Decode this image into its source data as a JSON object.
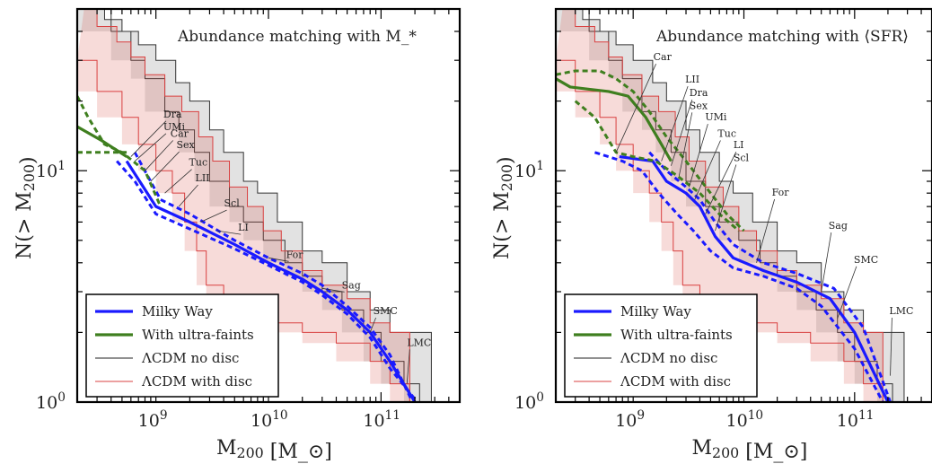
{
  "chart_data": [
    {
      "type": "line",
      "title": "Abundance matching with M_*",
      "xlabel": "M_200 [M_⊙]",
      "ylabel": "N(> M_200)",
      "xscale": "log",
      "yscale": "log",
      "xlim": [
        200000000.0,
        500000000000.0
      ],
      "ylim": [
        1,
        50
      ],
      "x_ticks": [
        {
          "v": 1000000000.0,
          "label": "10^9"
        },
        {
          "v": 10000000000.0,
          "label": "10^10"
        },
        {
          "v": 100000000000.0,
          "label": "10^11"
        }
      ],
      "y_ticks": [
        {
          "v": 1,
          "label": "10^0"
        },
        {
          "v": 10,
          "label": "10^1"
        }
      ],
      "legend_position": "lower-left",
      "legend": [
        "Milky Way",
        "With ultra-faints",
        "ΛCDM no disc",
        "ΛCDM with disc"
      ],
      "series": [
        {
          "name": "Milky Way",
          "color": "#1a1aff",
          "style": "solid",
          "x": [
            550000000.0,
            1000000000.0,
            2000000000.0,
            5000000000.0,
            10000000000.0,
            20000000000.0,
            30000000000.0,
            50000000000.0,
            80000000000.0,
            120000000000.0,
            200000000000.0
          ],
          "y": [
            11,
            7,
            6,
            4.8,
            4,
            3.4,
            3.0,
            2.5,
            2.0,
            1.5,
            1.0
          ]
        },
        {
          "name": "Milky Way",
          "color": "#1a1aff",
          "style": "dashed",
          "x": [
            450000000.0,
            650000000.0,
            1000000000.0,
            2000000000.0,
            5000000000.0,
            10000000000.0,
            20000000000.0,
            30000000000.0,
            50000000000.0,
            80000000000.0,
            120000000000.0,
            210000000000.0
          ],
          "y": [
            11,
            9,
            6.5,
            5.6,
            4.6,
            3.9,
            3.3,
            2.9,
            2.4,
            1.9,
            1.4,
            1.0
          ]
        },
        {
          "name": "Milky Way",
          "color": "#1a1aff",
          "style": "dashed",
          "x": [
            650000000.0,
            1100000000.0,
            2000000000.0,
            5000000000.0,
            10000000000.0,
            20000000000.0,
            30000000000.0,
            50000000000.0,
            80000000000.0,
            120000000000.0,
            190000000000.0
          ],
          "y": [
            12,
            7.5,
            6.5,
            5,
            4.2,
            3.6,
            3.2,
            2.6,
            2.1,
            1.6,
            1.0
          ]
        },
        {
          "name": "With ultra-faints",
          "color": "#3f7f1f",
          "style": "solid",
          "x": [
            200000000.0,
            330000000.0,
            550000000.0
          ],
          "y": [
            15.5,
            13.5,
            11.5
          ]
        },
        {
          "name": "With ultra-faints",
          "color": "#3f7f1f",
          "style": "dashed",
          "x": [
            200000000.0,
            250000000.0,
            350000000.0,
            500000000.0,
            800000000.0,
            1100000000.0
          ],
          "y": [
            21,
            17,
            13,
            12,
            10,
            7
          ]
        },
        {
          "name": "With ultra-faints",
          "color": "#3f7f1f",
          "style": "dashed",
          "x": [
            200000000.0,
            550000000.0
          ],
          "y": [
            12,
            12
          ]
        },
        {
          "name": "ΛCDM no disc",
          "color": "#222222",
          "style": "band",
          "upper_x": [
            280000000.0,
            350000000.0,
            500000000.0,
            700000000.0,
            1000000000.0,
            1500000000.0,
            2000000000.0,
            3000000000.0,
            4000000000.0,
            6000000000.0,
            8000000000.0,
            12000000000.0,
            20000000000.0,
            30000000000.0,
            50000000000.0,
            80000000000.0,
            120000000000.0,
            200000000000.0,
            280000000000.0
          ],
          "upper_y": [
            50,
            45,
            40,
            35,
            30,
            24,
            20,
            15,
            12,
            9,
            8,
            6,
            4.5,
            4,
            3,
            2.5,
            2,
            2,
            1
          ],
          "lower_x": [
            200000000.0,
            400000000.0,
            600000000.0,
            800000000.0,
            1200000000.0,
            1600000000.0,
            2200000000.0,
            3000000000.0,
            4500000000.0,
            6000000000.0,
            9000000000.0,
            14000000000.0,
            20000000000.0,
            30000000000.0,
            45000000000.0,
            70000000000.0,
            100000000000.0,
            160000000000.0,
            220000000000.0
          ],
          "lower_y": [
            50,
            40,
            30,
            25,
            18,
            15,
            12,
            9,
            7,
            6,
            5,
            4,
            3.5,
            3,
            2.5,
            2,
            1.5,
            1.2,
            1
          ]
        },
        {
          "name": "ΛCDM with disc",
          "color": "#d94040",
          "style": "band",
          "upper_x": [
            230000000.0,
            300000000.0,
            450000000.0,
            600000000.0,
            800000000.0,
            1200000000.0,
            1700000000.0,
            2400000000.0,
            3200000000.0,
            4500000000.0,
            6500000000.0,
            9000000000.0,
            13000000000.0,
            20000000000.0,
            30000000000.0,
            50000000000.0,
            80000000000.0,
            120000000000.0,
            180000000000.0
          ],
          "upper_y": [
            50,
            42,
            36,
            31,
            26,
            21,
            18,
            14,
            11,
            8.5,
            7,
            5.5,
            4.5,
            3.7,
            3.2,
            2.8,
            2.2,
            2.0,
            1
          ],
          "lower_x": [
            200000000.0,
            300000000.0,
            500000000.0,
            700000000.0,
            1000000000.0,
            1400000000.0,
            1800000000.0,
            2300000000.0,
            2800000000.0,
            4000000000.0,
            6000000000.0,
            10000000000.0,
            20000000000.0,
            40000000000.0,
            80000000000.0,
            120000000000.0,
            180000000000.0
          ],
          "lower_y": [
            30,
            22,
            17,
            13,
            10,
            8,
            6,
            4.5,
            3.2,
            2.8,
            2.5,
            2.2,
            2,
            1.8,
            1.5,
            1.2,
            1
          ]
        }
      ],
      "annotations": [
        {
          "text": "Dra",
          "x": 1300000000.0,
          "y": 17,
          "lx": 600000000.0,
          "ly": 11.5
        },
        {
          "text": "UMi",
          "x": 1300000000.0,
          "y": 15,
          "lx": 650000000.0,
          "ly": 11
        },
        {
          "text": "Car",
          "x": 1500000000.0,
          "y": 14,
          "lx": 800000000.0,
          "ly": 10
        },
        {
          "text": "Sex",
          "x": 1700000000.0,
          "y": 12.5,
          "lx": 900000000.0,
          "ly": 9
        },
        {
          "text": "Tuc",
          "x": 2200000000.0,
          "y": 10.5,
          "lx": 1200000000.0,
          "ly": 8
        },
        {
          "text": "LII",
          "x": 2500000000.0,
          "y": 9,
          "lx": 1600000000.0,
          "ly": 7
        },
        {
          "text": "Scl",
          "x": 4500000000.0,
          "y": 7,
          "lx": 2500000000.0,
          "ly": 6
        },
        {
          "text": "LI",
          "x": 6000000000.0,
          "y": 5.5,
          "lx": 3500000000.0,
          "ly": 5.5
        },
        {
          "text": "For",
          "x": 16000000000.0,
          "y": 4.2,
          "lx": 10000000000.0,
          "ly": 4.2
        },
        {
          "text": "Sag",
          "x": 50000000000.0,
          "y": 3.1,
          "lx": 30000000000.0,
          "ly": 3.1
        },
        {
          "text": "SMC",
          "x": 95000000000.0,
          "y": 2.4,
          "lx": 80000000000.0,
          "ly": 2.0
        },
        {
          "text": "LMC",
          "x": 190000000000.0,
          "y": 1.75,
          "lx": 170000000000.0,
          "ly": 1.2
        }
      ]
    },
    {
      "type": "line",
      "title": "Abundance matching with ⟨SFR⟩",
      "xlabel": "M_200 [M_⊙]",
      "ylabel": "N(> M_200)",
      "xscale": "log",
      "yscale": "log",
      "xlim": [
        200000000.0,
        500000000000.0
      ],
      "ylim": [
        1,
        50
      ],
      "x_ticks": [
        {
          "v": 1000000000.0,
          "label": "10^9"
        },
        {
          "v": 10000000000.0,
          "label": "10^10"
        },
        {
          "v": 100000000000.0,
          "label": "10^11"
        }
      ],
      "y_ticks": [
        {
          "v": 1,
          "label": "10^0"
        },
        {
          "v": 10,
          "label": "10^1"
        }
      ],
      "legend_position": "lower-left",
      "legend": [
        "Milky Way",
        "With ultra-faints",
        "ΛCDM no disc",
        "ΛCDM with disc"
      ],
      "series": [
        {
          "name": "Milky Way",
          "color": "#1a1aff",
          "style": "solid",
          "x": [
            750000000.0,
            1500000000.0,
            2000000000.0,
            3000000000.0,
            4000000000.0,
            5500000000.0,
            8000000000.0,
            15000000000.0,
            30000000000.0,
            60000000000.0,
            100000000000.0,
            200000000000.0
          ],
          "y": [
            11.5,
            11,
            9,
            8,
            7,
            5.2,
            4.2,
            3.7,
            3.3,
            2.8,
            2.0,
            1.0
          ]
        },
        {
          "name": "Milky Way",
          "color": "#1a1aff",
          "style": "dashed",
          "x": [
            450000000.0,
            800000000.0,
            1200000000.0,
            1700000000.0,
            2500000000.0,
            3500000000.0,
            5000000000.0,
            8000000000.0,
            15000000000.0,
            30000000000.0,
            50000000000.0,
            100000000000.0,
            180000000000.0
          ],
          "y": [
            12,
            11,
            10,
            8,
            6.5,
            5.5,
            4.5,
            3.8,
            3.5,
            3.1,
            2.6,
            1.7,
            1.0
          ]
        },
        {
          "name": "Milky Way",
          "color": "#1a1aff",
          "style": "dashed",
          "x": [
            1400000000.0,
            2000000000.0,
            3000000000.0,
            4000000000.0,
            5500000000.0,
            8000000000.0,
            15000000000.0,
            30000000000.0,
            65000000000.0,
            120000000000.0,
            210000000000.0
          ],
          "y": [
            12,
            10,
            8.5,
            7.5,
            6,
            4.8,
            4,
            3.6,
            3.1,
            2.1,
            1.0
          ]
        },
        {
          "name": "With ultra-faints",
          "color": "#3f7f1f",
          "style": "solid",
          "x": [
            200000000.0,
            270000000.0,
            400000000.0,
            600000000.0,
            900000000.0,
            1300000000.0,
            1800000000.0,
            2200000000.0
          ],
          "y": [
            25,
            23,
            22.5,
            22,
            21,
            17,
            13,
            11
          ]
        },
        {
          "name": "With ultra-faints",
          "color": "#3f7f1f",
          "style": "dashed",
          "x": [
            200000000.0,
            300000000.0,
            500000000.0,
            700000000.0,
            1000000000.0,
            1400000000.0,
            2000000000.0,
            3000000000.0,
            5000000000.0,
            7000000000.0,
            10000000000.0
          ],
          "y": [
            26,
            27,
            27,
            25,
            22,
            18,
            14,
            11,
            8,
            6.5,
            5.5
          ]
        },
        {
          "name": "With ultra-faints",
          "color": "#3f7f1f",
          "style": "dashed",
          "x": [
            300000000.0,
            450000000.0,
            700000000.0,
            1000000000.0,
            1600000000.0,
            2500000000.0,
            4000000000.0,
            6000000000.0,
            9000000000.0
          ],
          "y": [
            20,
            17,
            12,
            11.5,
            11,
            9.5,
            8,
            6.5,
            5.5
          ]
        },
        {
          "name": "ΛCDM no disc",
          "color": "#222222",
          "style": "band",
          "upper_x": [
            280000000.0,
            350000000.0,
            500000000.0,
            700000000.0,
            1000000000.0,
            1500000000.0,
            2000000000.0,
            3000000000.0,
            4000000000.0,
            6000000000.0,
            8000000000.0,
            12000000000.0,
            20000000000.0,
            30000000000.0,
            50000000000.0,
            80000000000.0,
            120000000000.0,
            200000000000.0,
            280000000000.0
          ],
          "upper_y": [
            50,
            45,
            40,
            35,
            30,
            24,
            20,
            15,
            12,
            9,
            8,
            6,
            4.5,
            4,
            3,
            2.5,
            2,
            2,
            1
          ],
          "lower_x": [
            200000000.0,
            400000000.0,
            600000000.0,
            800000000.0,
            1200000000.0,
            1600000000.0,
            2200000000.0,
            3000000000.0,
            4500000000.0,
            6000000000.0,
            9000000000.0,
            14000000000.0,
            20000000000.0,
            30000000000.0,
            45000000000.0,
            70000000000.0,
            100000000000.0,
            160000000000.0,
            220000000000.0
          ],
          "lower_y": [
            50,
            40,
            30,
            25,
            18,
            15,
            12,
            9,
            7,
            6,
            5,
            4,
            3.5,
            3,
            2.5,
            2,
            1.5,
            1.2,
            1
          ]
        },
        {
          "name": "ΛCDM with disc",
          "color": "#d94040",
          "style": "band",
          "upper_x": [
            230000000.0,
            300000000.0,
            450000000.0,
            600000000.0,
            800000000.0,
            1200000000.0,
            1700000000.0,
            2400000000.0,
            3200000000.0,
            4500000000.0,
            6500000000.0,
            9000000000.0,
            13000000000.0,
            20000000000.0,
            30000000000.0,
            50000000000.0,
            80000000000.0,
            120000000000.0,
            180000000000.0
          ],
          "upper_y": [
            50,
            42,
            36,
            31,
            26,
            21,
            18,
            14,
            11,
            8.5,
            7,
            5.5,
            4.5,
            3.7,
            3.2,
            2.8,
            2.2,
            2.0,
            1
          ],
          "lower_x": [
            200000000.0,
            300000000.0,
            500000000.0,
            700000000.0,
            1000000000.0,
            1400000000.0,
            1800000000.0,
            2300000000.0,
            2800000000.0,
            4000000000.0,
            6000000000.0,
            10000000000.0,
            20000000000.0,
            40000000000.0,
            80000000000.0,
            120000000000.0,
            180000000000.0
          ],
          "lower_y": [
            30,
            22,
            17,
            13,
            10,
            8,
            6,
            4.5,
            3.2,
            2.8,
            2.5,
            2.2,
            2,
            1.8,
            1.5,
            1.2,
            1
          ]
        }
      ],
      "annotations": [
        {
          "text": "Car",
          "x": 1700000000.0,
          "y": 30,
          "lx": 700000000.0,
          "ly": 12
        },
        {
          "text": "LII",
          "x": 3300000000.0,
          "y": 24,
          "lx": 1800000000.0,
          "ly": 11
        },
        {
          "text": "Dra",
          "x": 3600000000.0,
          "y": 21,
          "lx": 2200000000.0,
          "ly": 10.5
        },
        {
          "text": "Sex",
          "x": 3600000000.0,
          "y": 18.5,
          "lx": 2600000000.0,
          "ly": 9.5
        },
        {
          "text": "UMi",
          "x": 5000000000.0,
          "y": 16.5,
          "lx": 3200000000.0,
          "ly": 8.5
        },
        {
          "text": "Tuc",
          "x": 6500000000.0,
          "y": 14,
          "lx": 3600000000.0,
          "ly": 7.5
        },
        {
          "text": "LI",
          "x": 9000000000.0,
          "y": 12.5,
          "lx": 4500000000.0,
          "ly": 6.5
        },
        {
          "text": "Scl",
          "x": 9000000000.0,
          "y": 11,
          "lx": 5500000000.0,
          "ly": 5.5
        },
        {
          "text": "For",
          "x": 20000000000.0,
          "y": 7.8,
          "lx": 13000000000.0,
          "ly": 4.0
        },
        {
          "text": "Sag",
          "x": 65000000000.0,
          "y": 5.6,
          "lx": 50000000000.0,
          "ly": 3.0
        },
        {
          "text": "SMC",
          "x": 110000000000.0,
          "y": 4.0,
          "lx": 70000000000.0,
          "ly": 2.3
        },
        {
          "text": "LMC",
          "x": 230000000000.0,
          "y": 2.4,
          "lx": 210000000000.0,
          "ly": 1.3
        }
      ]
    }
  ]
}
